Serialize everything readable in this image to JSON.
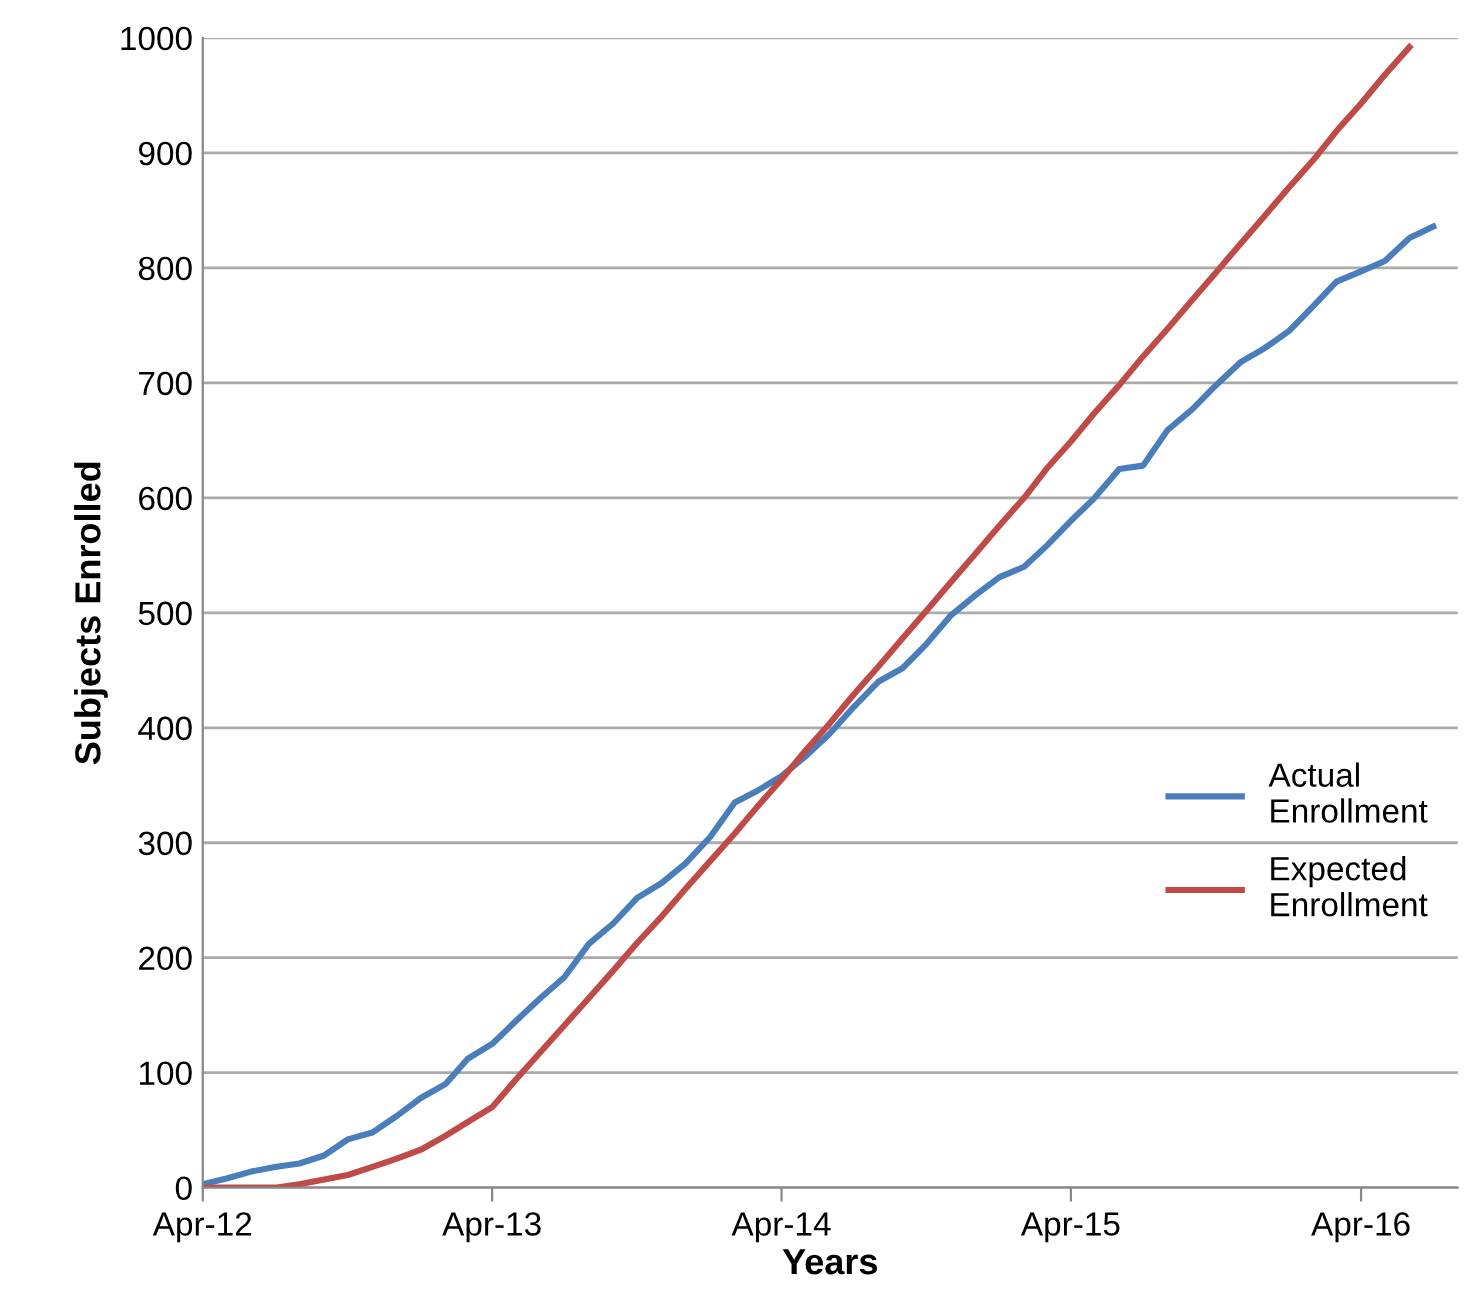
{
  "chart_data": {
    "type": "line",
    "xlabel": "Years",
    "ylabel": "Subjects Enrolled",
    "x": [
      "2012-04",
      "2012-05",
      "2012-06",
      "2012-07",
      "2012-08",
      "2012-09",
      "2012-10",
      "2012-11",
      "2012-12",
      "2013-01",
      "2013-02",
      "2013-03",
      "2013-04",
      "2013-05",
      "2013-06",
      "2013-07",
      "2013-08",
      "2013-09",
      "2013-10",
      "2013-11",
      "2013-12",
      "2014-01",
      "2014-02",
      "2014-03",
      "2014-04",
      "2014-05",
      "2014-06",
      "2014-07",
      "2014-08",
      "2014-09",
      "2014-10",
      "2014-11",
      "2014-12",
      "2015-01",
      "2015-02",
      "2015-03",
      "2015-04",
      "2015-05",
      "2015-06",
      "2015-07",
      "2015-08",
      "2015-09",
      "2015-10",
      "2015-11",
      "2015-12",
      "2016-01",
      "2016-02",
      "2016-03",
      "2016-04",
      "2016-05",
      "2016-06",
      "2016-07"
    ],
    "series": [
      {
        "name": "Actual Enrollment",
        "color": "#4a7ebb",
        "values": [
          3,
          8,
          14,
          18,
          21,
          28,
          42,
          48,
          62,
          78,
          90,
          112,
          125,
          145,
          165,
          183,
          212,
          230,
          252,
          265,
          282,
          305,
          335,
          345,
          358,
          375,
          395,
          418,
          440,
          452,
          473,
          498,
          515,
          531,
          540,
          558,
          580,
          600,
          625,
          628,
          659,
          677,
          698,
          718,
          730,
          745,
          767,
          788,
          797,
          806,
          826,
          836
        ]
      },
      {
        "name": "Expected Enrollment",
        "color": "#be4b48",
        "values": [
          0,
          0,
          0,
          0,
          3,
          7,
          11,
          18,
          25,
          33,
          45,
          57,
          70,
          94,
          118,
          141,
          165,
          189,
          213,
          236,
          260,
          284,
          308,
          331,
          355,
          380,
          404,
          429,
          453,
          478,
          502,
          527,
          551,
          576,
          600,
          625,
          649,
          674,
          698,
          723,
          747,
          772,
          796,
          821,
          845,
          870,
          894,
          919,
          943,
          968,
          992,
          null
        ]
      }
    ],
    "xlim": [
      "2012-04",
      "2016-08"
    ],
    "xticks": [
      {
        "value": "2012-04",
        "label": "Apr-12"
      },
      {
        "value": "2013-04",
        "label": "Apr-13"
      },
      {
        "value": "2014-04",
        "label": "Apr-14"
      },
      {
        "value": "2015-04",
        "label": "Apr-15"
      },
      {
        "value": "2016-04",
        "label": "Apr-16"
      }
    ],
    "ylim": [
      0,
      1000
    ],
    "yticks": [
      0,
      100,
      200,
      300,
      400,
      500,
      600,
      700,
      800,
      900,
      1000
    ],
    "grid": "y",
    "legend": "right",
    "marker": "none",
    "line_style": "solid"
  }
}
